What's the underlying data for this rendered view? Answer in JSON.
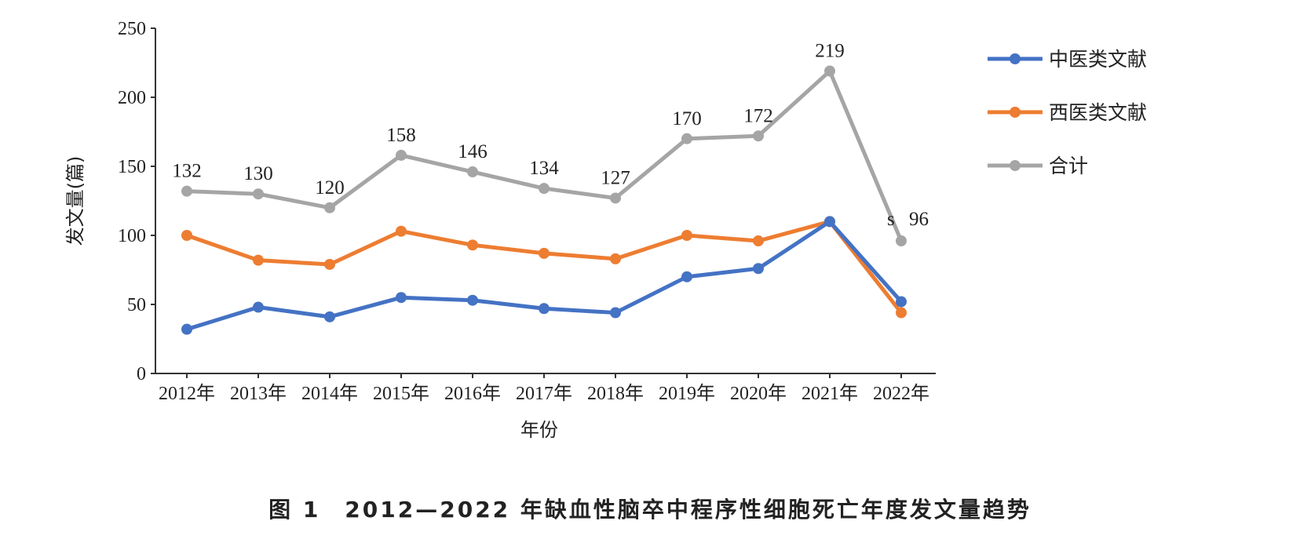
{
  "caption": "图 1　2012—2022 年缺血性脑卒中程序性细胞死亡年度发文量趋势",
  "chart_data": {
    "type": "line",
    "xlabel": "年份",
    "ylabel": "发文量(篇)",
    "categories": [
      "2012年",
      "2013年",
      "2014年",
      "2015年",
      "2016年",
      "2017年",
      "2018年",
      "2019年",
      "2020年",
      "2021年",
      "2022年"
    ],
    "ylim": [
      0,
      250
    ],
    "yticks": [
      0,
      50,
      100,
      150,
      200,
      250
    ],
    "legend_position": "right",
    "grid": false,
    "series": [
      {
        "name": "中医类文献",
        "color": "#4472C4",
        "values": [
          32,
          48,
          41,
          55,
          53,
          47,
          44,
          70,
          76,
          110,
          52
        ]
      },
      {
        "name": "西医类文献",
        "color": "#ED7D31",
        "values": [
          100,
          82,
          79,
          103,
          93,
          87,
          83,
          100,
          96,
          110,
          44
        ]
      },
      {
        "name": "合计",
        "color": "#A5A5A5",
        "values": [
          132,
          130,
          120,
          158,
          146,
          134,
          127,
          170,
          172,
          219,
          96
        ],
        "data_labels": [
          "132",
          "130",
          "120",
          "158",
          "146",
          "134",
          "127",
          "170",
          "172",
          "219",
          "96"
        ]
      }
    ],
    "annotations": [
      "s"
    ]
  }
}
